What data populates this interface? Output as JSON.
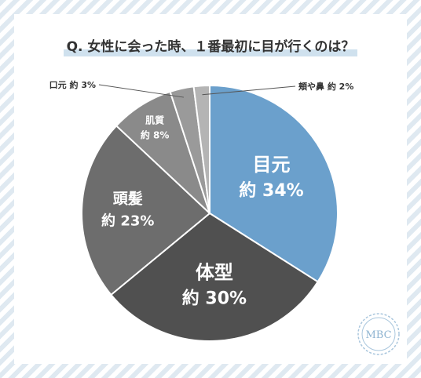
{
  "title": "Q. 女性に会った時、１番最初に目が行くのは？",
  "logo": "MBC",
  "colors": {
    "background_stripe": "#dfe9f1",
    "title_highlight": "#cfe1ee",
    "slice_1": "#6ba0cc",
    "slice_2": "#505050",
    "slice_3": "#6d6d6d",
    "slice_4": "#8a8a8a",
    "slice_5": "#9a9a9a",
    "slice_6": "#b4b4b4"
  },
  "chart_data": {
    "type": "pie",
    "title": "Q. 女性に会った時、１番最初に目が行くのは？",
    "slices": [
      {
        "label": "目元",
        "value_label": "約 34%",
        "value": 34
      },
      {
        "label": "体型",
        "value_label": "約 30%",
        "value": 30
      },
      {
        "label": "頭髪",
        "value_label": "約 23%",
        "value": 23
      },
      {
        "label": "肌質",
        "value_label": "約 8%",
        "value": 8
      },
      {
        "label": "口元",
        "value_label": "約 3%",
        "value": 3
      },
      {
        "label": "頬や鼻",
        "value_label": "約 2%",
        "value": 2
      }
    ],
    "start": "top",
    "direction": "clockwise"
  }
}
